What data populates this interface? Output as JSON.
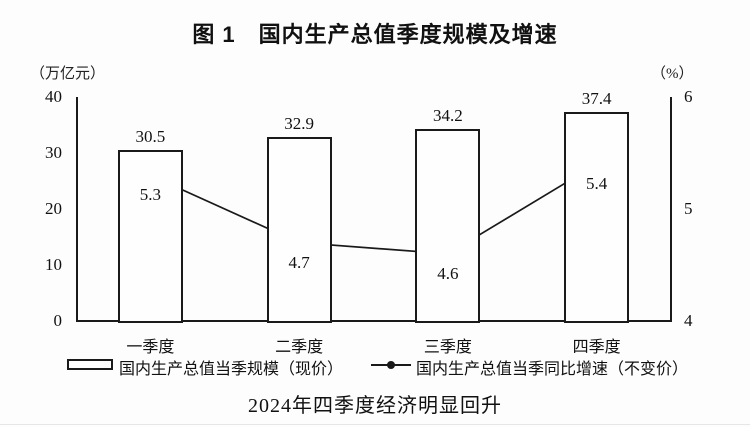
{
  "title": "图 1　国内生产总值季度规模及增速",
  "left_axis_unit": "（万亿元）",
  "right_axis_unit": "（%）",
  "caption": "2024年四季度经济明显回升",
  "legend": {
    "bar_label": "国内生产总值当季规模（现价）",
    "line_label": "国内生产总值当季同比增速（不变价）"
  },
  "chart_data": {
    "type": "bar",
    "subtype": "bar+line combo, dual axis",
    "title": "图 1　国内生产总值季度规模及增速",
    "caption": "2024年四季度经济明显回升",
    "categories": [
      "一季度",
      "二季度",
      "三季度",
      "四季度"
    ],
    "series": [
      {
        "name": "国内生产总值当季规模（现价）",
        "type": "bar",
        "axis": "left",
        "unit": "万亿元",
        "values": [
          30.5,
          32.9,
          34.2,
          37.4
        ]
      },
      {
        "name": "国内生产总值当季同比增速（不变价）",
        "type": "line",
        "axis": "right",
        "unit": "%",
        "values": [
          5.3,
          4.7,
          4.6,
          5.4
        ]
      }
    ],
    "left_axis": {
      "label": "万亿元",
      "range": [
        0,
        40
      ],
      "ticks": [
        0,
        10,
        20,
        30,
        40
      ]
    },
    "right_axis": {
      "label": "%",
      "range": [
        4,
        6
      ],
      "ticks": [
        4,
        5,
        6
      ]
    },
    "grid": false,
    "legend_position": "bottom",
    "colors": {
      "stroke": "#1a1a1a",
      "bar_fill": "#fefefe",
      "background": "#fdfdfd"
    }
  }
}
